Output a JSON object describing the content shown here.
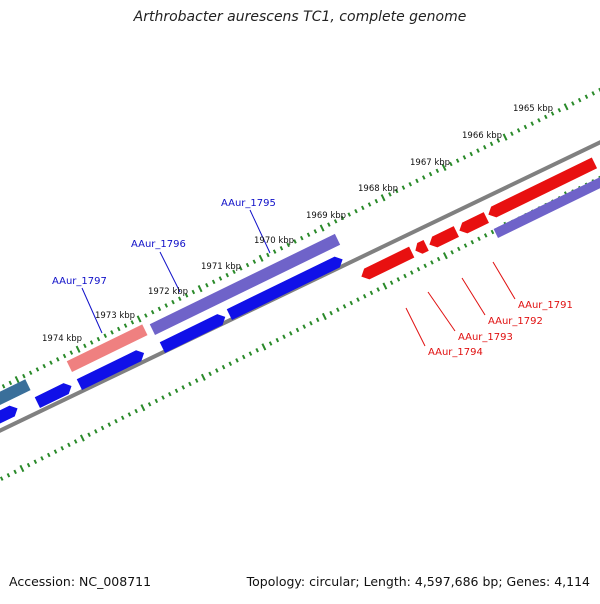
{
  "title": "Arthrobacter aurescens TC1, complete genome",
  "accession": "Accession: NC_008711",
  "topology": "Topology: circular; Length: 4,597,686 bp; Genes: 4,114",
  "colors": {
    "backbone": "#808080",
    "forward_gene": "#1010e8",
    "reverse_gene": "#e81010",
    "forward_highlight": "#6f63c9",
    "reverse_highlight": "#ef8080",
    "teal_gene": "#3a6f9a",
    "tick": "#2a8a2a",
    "label_forward": "#1010c8",
    "label_reverse": "#e01010"
  },
  "kbp_labels": [
    "1965 kbp",
    "1966 kbp",
    "1967 kbp",
    "1968 kbp",
    "1969 kbp",
    "1970 kbp",
    "1971 kbp",
    "1972 kbp",
    "1973 kbp",
    "1974 kbp"
  ],
  "gene_labels": [
    {
      "text": "AAur_1795",
      "strand": "forward"
    },
    {
      "text": "AAur_1796",
      "strand": "forward"
    },
    {
      "text": "AAur_1797",
      "strand": "forward"
    },
    {
      "text": "AAur_1791",
      "strand": "reverse"
    },
    {
      "text": "AAur_1792",
      "strand": "reverse"
    },
    {
      "text": "AAur_1793",
      "strand": "reverse"
    },
    {
      "text": "AAur_1794",
      "strand": "reverse"
    }
  ]
}
